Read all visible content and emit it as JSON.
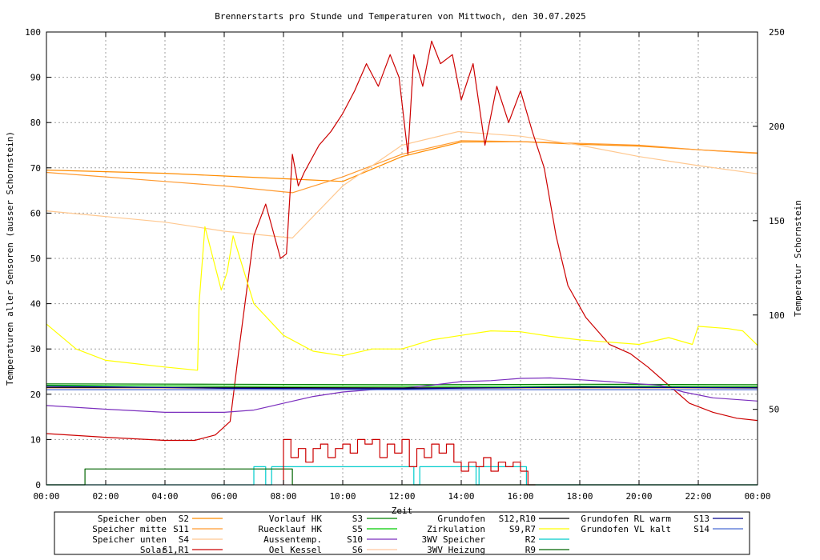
{
  "chart_data": {
    "type": "line",
    "title": "Brennerstarts pro Stunde und Temperaturen von Mittwoch, den 30.07.2025",
    "xlabel": "Zeit",
    "ylabel": "Temperaturen aller Sensoren (ausser Schornstein)",
    "y2label": "Temperatur Schornstein",
    "y2label_color": "#ff66cc",
    "xlim": [
      0,
      24
    ],
    "ylim": [
      0,
      100
    ],
    "y2lim": [
      10,
      250
    ],
    "grid": true,
    "legend_position": "bottom",
    "x_ticks": [
      "00:00",
      "02:00",
      "04:00",
      "06:00",
      "08:00",
      "10:00",
      "12:00",
      "14:00",
      "16:00",
      "18:00",
      "20:00",
      "22:00",
      "00:00"
    ],
    "y_ticks": [
      "0",
      "10",
      "20",
      "30",
      "40",
      "50",
      "60",
      "70",
      "80",
      "90",
      "100"
    ],
    "y2_ticks": [
      "50",
      "100",
      "150",
      "200",
      "250"
    ],
    "y2_tick_values": [
      50,
      100,
      150,
      200,
      250
    ],
    "series": [
      {
        "name": "Speicher oben",
        "code": "S2",
        "color": "#ff8c00",
        "axis": "y",
        "x": [
          0,
          4,
          6,
          8.3,
          10,
          12,
          14,
          16,
          18,
          20,
          22,
          24
        ],
        "y": [
          69.5,
          68.8,
          68.2,
          67.5,
          67,
          72.5,
          75.7,
          75.8,
          75.2,
          74.8,
          74,
          73.2
        ]
      },
      {
        "name": "Speicher mitte",
        "code": "S11",
        "color": "#ff9a30",
        "axis": "y",
        "x": [
          0,
          4,
          6,
          8.3,
          10,
          12,
          14,
          16,
          18,
          20,
          22,
          24
        ],
        "y": [
          69,
          67,
          66,
          64.5,
          68,
          73,
          76,
          75.8,
          75.4,
          75,
          74,
          73.3
        ]
      },
      {
        "name": "Speicher unten",
        "code": "S4",
        "color": "#ffc890",
        "axis": "y",
        "x": [
          0,
          4,
          6,
          8.3,
          10,
          12,
          13.9,
          16,
          18,
          20,
          22,
          24
        ],
        "y": [
          60.5,
          58,
          56,
          54.5,
          66,
          75,
          78,
          77,
          75,
          72.5,
          70.5,
          68.7
        ]
      },
      {
        "name": "Solar",
        "code": "S1,R1",
        "color": "#cc0000",
        "axis": "y",
        "x": [
          0,
          2,
          4,
          5,
          5.7,
          6.2,
          6.5,
          7,
          7.4,
          7.9,
          8.1,
          8.3,
          8.5,
          8.7,
          9.2,
          9.6,
          10,
          10.4,
          10.8,
          11.2,
          11.6,
          11.9,
          12.2,
          12.4,
          12.7,
          13,
          13.3,
          13.7,
          14,
          14.4,
          14.8,
          15.2,
          15.6,
          16,
          16.4,
          16.8,
          17.2,
          17.6,
          18.2,
          19,
          19.7,
          20.3,
          21,
          21.7,
          22.5,
          23.3,
          24
        ],
        "y": [
          11.3,
          10.5,
          9.8,
          9.8,
          11,
          14,
          30,
          55,
          62,
          50,
          51,
          73,
          66,
          69,
          75,
          78,
          82,
          87,
          93,
          88,
          95,
          90,
          73,
          95,
          88,
          98,
          93,
          95,
          85,
          93,
          75,
          88,
          80,
          87,
          78,
          70,
          55,
          44,
          37,
          31,
          29,
          26,
          22,
          18,
          16,
          14.7,
          14.2
        ]
      },
      {
        "name": "Vorlauf HK",
        "code": "S3",
        "color": "#008000",
        "axis": "y",
        "x": [
          0,
          6,
          12,
          18,
          24
        ],
        "y": [
          22.3,
          22.2,
          22.1,
          22.2,
          22.1
        ]
      },
      {
        "name": "Ruecklauf HK",
        "code": "S5",
        "color": "#00cc00",
        "axis": "y",
        "x": [
          0,
          6,
          12,
          18,
          24
        ],
        "y": [
          22,
          21.8,
          21.7,
          21.8,
          21.7
        ]
      },
      {
        "name": "Aussentemp.",
        "code": "S10",
        "color": "#7b2fbe",
        "axis": "y",
        "x": [
          0,
          2,
          4,
          6,
          7,
          8,
          9,
          10,
          11,
          12,
          13,
          14,
          15,
          16,
          17,
          18,
          19,
          20,
          20.7,
          21.5,
          22.5,
          24
        ],
        "y": [
          17.5,
          16.7,
          16,
          16,
          16.5,
          18,
          19.5,
          20.5,
          21,
          21.3,
          22,
          22.8,
          23,
          23.5,
          23.6,
          23.2,
          22.8,
          22.3,
          22,
          20.5,
          19.2,
          18.5
        ]
      },
      {
        "name": "Oel Kessel",
        "code": "S6",
        "color": "#ffc8a0",
        "axis": "y",
        "x": [
          0,
          6,
          12,
          18,
          24
        ],
        "y": [
          21.3,
          21.3,
          21.3,
          21.3,
          21.3
        ]
      },
      {
        "name": "Grundofen",
        "code": "S12,R10",
        "color": "#000000",
        "axis": "y",
        "x": [
          0,
          6,
          12,
          18,
          24
        ],
        "y": [
          21.5,
          21.5,
          21.4,
          21.5,
          21.5
        ]
      },
      {
        "name": "Zirkulation",
        "code": "S9,R7",
        "color": "#ffff00",
        "axis": "y",
        "x": [
          0,
          1,
          2,
          4,
          5.1,
          5.15,
          5.35,
          5.9,
          6.1,
          6.3,
          7,
          8,
          9,
          10,
          11,
          12,
          13,
          14,
          15,
          16,
          17,
          18,
          19,
          20,
          21,
          21.8,
          22,
          23,
          23.5,
          24
        ],
        "y": [
          35.5,
          30,
          27.5,
          26,
          25.3,
          40,
          57,
          43,
          47,
          55,
          40,
          33,
          29.5,
          28.5,
          30,
          30,
          32,
          33,
          34,
          33.8,
          32.8,
          32,
          31.5,
          31,
          32.5,
          31,
          35,
          34.5,
          34,
          30.8
        ]
      },
      {
        "name": "3WV Speicher",
        "code": "R2",
        "color": "#00cccc",
        "axis": "y",
        "x": [
          0,
          7,
          7,
          7.4,
          7.4,
          7.6,
          7.6,
          8.1,
          8.1,
          12.4,
          12.4,
          12.6,
          12.6,
          14.5,
          14.5,
          14.6,
          14.6,
          16.2,
          16.2,
          16.7,
          16.7,
          24
        ],
        "y": [
          0,
          0,
          4,
          4,
          0,
          0,
          4,
          4,
          4,
          4,
          0,
          0,
          4,
          4,
          0,
          0,
          4,
          4,
          0,
          0,
          0,
          0
        ]
      },
      {
        "name": "3WV Heizung",
        "code": "R9",
        "color": "#006400",
        "axis": "y",
        "x": [
          0,
          1.3,
          1.3,
          8.3,
          8.3,
          24
        ],
        "y": [
          0,
          0,
          3.5,
          3.5,
          0,
          0
        ]
      },
      {
        "name": "Grundofen RL warm",
        "code": "S13",
        "color": "#00008b",
        "axis": "y",
        "x": [
          0,
          6,
          12,
          18,
          24
        ],
        "y": [
          21.8,
          21.3,
          21.2,
          21.6,
          21.4
        ]
      },
      {
        "name": "Grundofen VL kalt",
        "code": "S14",
        "color": "#4a6cd4",
        "axis": "y",
        "x": [
          0,
          6,
          12,
          18,
          24
        ],
        "y": [
          21,
          21,
          21,
          21,
          21
        ]
      },
      {
        "name": "Brennerstarts",
        "code": "",
        "color": "#cc0000",
        "axis": "y",
        "style": "steps",
        "x": [
          8,
          8.25,
          8.5,
          8.75,
          9,
          9.25,
          9.5,
          9.75,
          10,
          10.25,
          10.5,
          10.75,
          11,
          11.25,
          11.5,
          11.75,
          12,
          12.25,
          12.5,
          12.75,
          13,
          13.25,
          13.5,
          13.75,
          14,
          14.25,
          14.5,
          14.75,
          15,
          15.25,
          15.5,
          15.75,
          16,
          16.25
        ],
        "y": [
          10,
          6,
          8,
          5,
          8,
          9,
          6,
          8,
          9,
          7,
          10,
          9,
          10,
          6,
          9,
          7,
          10,
          4,
          8,
          6,
          9,
          7,
          9,
          5,
          3,
          5,
          4,
          6,
          3,
          5,
          4,
          5,
          3,
          0
        ]
      }
    ]
  }
}
